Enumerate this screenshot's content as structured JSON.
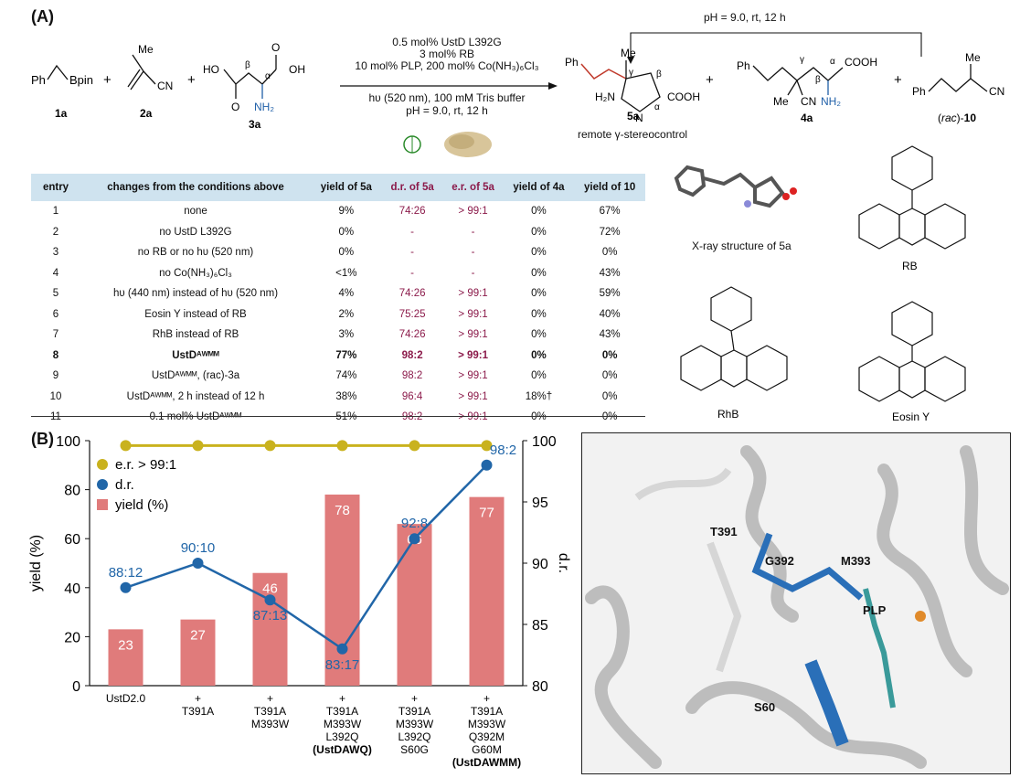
{
  "panelA": {
    "label": "(A)",
    "reactants": [
      {
        "id": "1a",
        "name": "Ph⁀Bpin"
      },
      {
        "id": "2a"
      },
      {
        "id": "3a"
      }
    ],
    "conditions": [
      "0.5 mol% UstD L392G",
      "3 mol% RB",
      "10 mol% PLP, 200 mol% Co(NH₃)₆Cl₃",
      "hυ (520 nm), 100 mM Tris buffer",
      "pH = 9.0, rt, 12 h"
    ],
    "loop_condition": "pH = 9.0, rt, 12 h",
    "products": [
      {
        "id": "5a",
        "caption": "remote γ-stereocontrol"
      },
      {
        "id": "4a"
      },
      {
        "id": "(rac)-10"
      }
    ],
    "xray_caption": "X-ray structure of 5a",
    "dyes": [
      "RB",
      "RhB",
      "Eosin Y"
    ],
    "table": {
      "headers": [
        "entry",
        "changes from the conditions above",
        "yield of 5a",
        "d.r. of 5a",
        "e.r. of 5a",
        "yield of 4a",
        "yield of 10"
      ],
      "rows": [
        [
          "1",
          "none",
          "9%",
          "74:26",
          "> 99:1",
          "0%",
          "67%"
        ],
        [
          "2",
          "no UstD L392G",
          "0%",
          "-",
          "-",
          "0%",
          "72%"
        ],
        [
          "3",
          "no RB or no hυ (520 nm)",
          "0%",
          "-",
          "-",
          "0%",
          "0%"
        ],
        [
          "4",
          "no Co(NH₃)₆Cl₃",
          "<1%",
          "-",
          "-",
          "0%",
          "43%"
        ],
        [
          "5",
          "hυ (440 nm) instead of hυ (520 nm)",
          "4%",
          "74:26",
          "> 99:1",
          "0%",
          "59%"
        ],
        [
          "6",
          "Eosin Y instead of RB",
          "2%",
          "75:25",
          "> 99:1",
          "0%",
          "40%"
        ],
        [
          "7",
          "RhB instead of RB",
          "3%",
          "74:26",
          "> 99:1",
          "0%",
          "43%"
        ],
        [
          "8",
          "UstDᴬᵂᴹᴹ",
          "77%",
          "98:2",
          "> 99:1",
          "0%",
          "0%"
        ],
        [
          "9",
          "UstDᴬᵂᴹᴹ, (rac)-3a",
          "74%",
          "98:2",
          "> 99:1",
          "0%",
          "0%"
        ],
        [
          "10",
          "UstDᴬᵂᴹᴹ, 2 h instead of 12 h",
          "38%",
          "96:4",
          "> 99:1",
          "18%†",
          "0%"
        ],
        [
          "11",
          "0.1 mol% UstDᴬᵂᴹᴹ",
          "51%",
          "98:2",
          "> 99:1",
          "0%",
          "0%"
        ]
      ]
    }
  },
  "panelB": {
    "label": "(B)",
    "protein_labels": [
      "T391",
      "G392",
      "M393",
      "PLP",
      "S60"
    ]
  },
  "chart_data": {
    "type": "bar",
    "categories": [
      "UstD²·⁰",
      "+ T391A",
      "+ T391A M393W",
      "+ T391A M393W L392Q (UstDᴬᵂQ)",
      "+ T391A M393W L392Q S60G",
      "+ T391A M393W Q392M G60M (UstDᴬᵂᴹᴹ)"
    ],
    "category_lines": [
      [
        "UstD2.0"
      ],
      [
        "+",
        "T391A"
      ],
      [
        "+",
        "T391A",
        "M393W"
      ],
      [
        "+",
        "T391A",
        "M393W",
        "L392Q",
        "(UstDAWQ)"
      ],
      [
        "+",
        "T391A",
        "M393W",
        "L392Q",
        "S60G"
      ],
      [
        "+",
        "T391A",
        "M393W",
        "Q392M",
        "G60M",
        "(UstDAWMM)"
      ]
    ],
    "series": [
      {
        "name": "yield (%)",
        "type": "bar",
        "axis": "left",
        "values": [
          23,
          27,
          46,
          78,
          66,
          77
        ],
        "color": "#e07b7b"
      },
      {
        "name": "d.r.",
        "type": "line",
        "axis": "right",
        "values": [
          88,
          90,
          87,
          83,
          92,
          98
        ],
        "labels": [
          "88:12",
          "90:10",
          "87:13",
          "83:17",
          "92:8",
          "98:2"
        ],
        "color": "#2166a8"
      },
      {
        "name": "e.r. > 99:1",
        "type": "line",
        "axis": "right",
        "values": [
          99.6,
          99.6,
          99.6,
          99.6,
          99.6,
          99.6
        ],
        "color": "#c9b21e"
      }
    ],
    "ylabel": "yield (%)",
    "y2label": "d.r.",
    "ylim": [
      0,
      100
    ],
    "y2lim": [
      80,
      100
    ],
    "yticks": [
      0,
      20,
      40,
      60,
      80,
      100
    ],
    "y2ticks": [
      80,
      85,
      90,
      95,
      100
    ],
    "legend": "top-left"
  }
}
